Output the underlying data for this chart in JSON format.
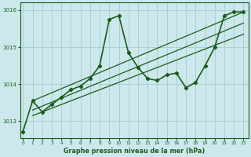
{
  "title": "Graphe pression niveau de la mer (hPa)",
  "background_color": "#cce8ec",
  "grid_color": "#aacccc",
  "line_color": "#1a5c1a",
  "ylim": [
    1012.55,
    1016.2
  ],
  "yticks": [
    1013,
    1014,
    1015,
    1016
  ],
  "xlim": [
    -0.3,
    23.5
  ],
  "xticks": [
    0,
    1,
    2,
    3,
    4,
    5,
    6,
    7,
    8,
    9,
    10,
    11,
    12,
    13,
    14,
    15,
    16,
    17,
    18,
    19,
    20,
    21,
    22,
    23
  ],
  "series": [
    {
      "x": [
        0,
        1,
        2,
        3,
        4,
        5,
        6,
        7,
        8,
        9,
        10,
        11,
        12,
        13,
        14,
        15,
        16,
        17,
        18,
        19,
        20,
        21,
        22,
        23
      ],
      "y": [
        1012.72,
        1013.55,
        1013.25,
        1013.45,
        1013.65,
        1013.85,
        1013.95,
        1014.15,
        1014.5,
        1015.75,
        1015.85,
        1014.85,
        1014.45,
        1014.15,
        1014.1,
        1014.25,
        1014.3,
        1013.9,
        1014.05,
        1014.5,
        1015.0,
        1015.85,
        1015.95,
        1015.95
      ],
      "marker": true,
      "linewidth": 1.2
    },
    {
      "x": [
        1,
        23
      ],
      "y": [
        1013.55,
        1015.95
      ],
      "marker": false,
      "linewidth": 0.9
    },
    {
      "x": [
        1,
        23
      ],
      "y": [
        1013.3,
        1015.65
      ],
      "marker": false,
      "linewidth": 0.9
    },
    {
      "x": [
        1,
        23
      ],
      "y": [
        1013.15,
        1015.35
      ],
      "marker": false,
      "linewidth": 0.9
    }
  ]
}
